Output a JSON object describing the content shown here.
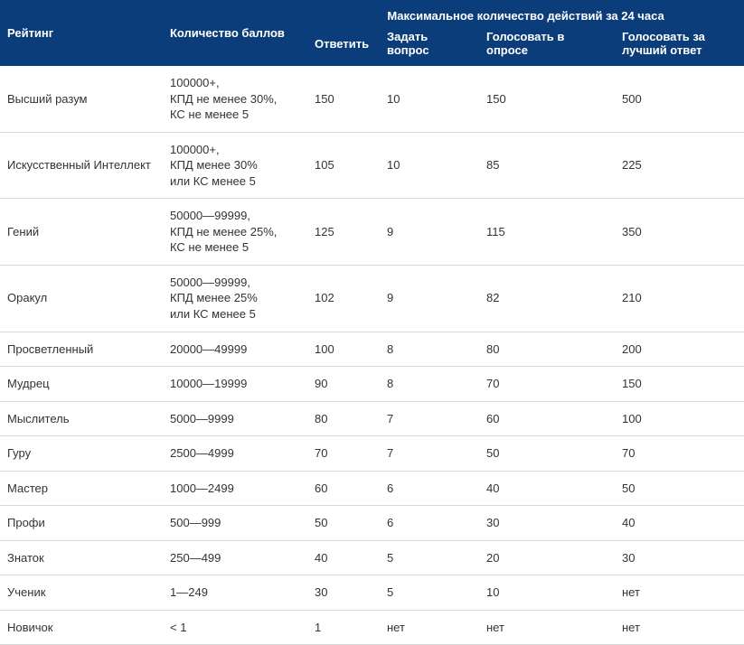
{
  "table": {
    "type": "table",
    "background_color": "#ffffff",
    "header_bg": "#0b3d7a",
    "header_text_color": "#ffffff",
    "border_color": "#d9d9d9",
    "font_family": "Arial",
    "font_size": 13,
    "columns": {
      "rating": "Рейтинг",
      "points": "Количество баллов",
      "group": "Максимальное количество действий за 24 часа",
      "answer": "Ответить",
      "ask": "Задать вопрос",
      "vote_poll": "Голосовать в опросе",
      "vote_best": "Голосовать за лучший ответ"
    },
    "col_widths": {
      "rating": 180,
      "points": 160,
      "answer": 80,
      "ask": 110,
      "vote_poll": 150,
      "vote_best": 143
    },
    "rows": [
      {
        "rating": "Высший разум",
        "points": "100000+,\nКПД не менее 30%,\nКС не менее 5",
        "answer": "150",
        "ask": "10",
        "vote_poll": "150",
        "vote_best": "500"
      },
      {
        "rating": "Искусственный Интеллект",
        "points": "100000+,\nКПД менее 30%\nили КС менее 5",
        "answer": "105",
        "ask": "10",
        "vote_poll": "85",
        "vote_best": "225"
      },
      {
        "rating": "Гений",
        "points": "50000—99999,\nКПД не менее 25%,\nКС не менее 5",
        "answer": "125",
        "ask": "9",
        "vote_poll": "115",
        "vote_best": "350"
      },
      {
        "rating": "Оракул",
        "points": "50000—99999,\nКПД менее 25%\nили КС менее 5",
        "answer": "102",
        "ask": "9",
        "vote_poll": "82",
        "vote_best": "210"
      },
      {
        "rating": "Просветленный",
        "points": "20000—49999",
        "answer": "100",
        "ask": "8",
        "vote_poll": "80",
        "vote_best": "200"
      },
      {
        "rating": "Мудрец",
        "points": "10000—19999",
        "answer": "90",
        "ask": "8",
        "vote_poll": "70",
        "vote_best": "150"
      },
      {
        "rating": "Мыслитель",
        "points": "5000—9999",
        "answer": "80",
        "ask": "7",
        "vote_poll": "60",
        "vote_best": "100"
      },
      {
        "rating": "Гуру",
        "points": "2500—4999",
        "answer": "70",
        "ask": "7",
        "vote_poll": "50",
        "vote_best": "70"
      },
      {
        "rating": "Мастер",
        "points": "1000—2499",
        "answer": "60",
        "ask": "6",
        "vote_poll": "40",
        "vote_best": "50"
      },
      {
        "rating": "Профи",
        "points": "500—999",
        "answer": "50",
        "ask": "6",
        "vote_poll": "30",
        "vote_best": "40"
      },
      {
        "rating": "Знаток",
        "points": "250—499",
        "answer": "40",
        "ask": "5",
        "vote_poll": "20",
        "vote_best": "30"
      },
      {
        "rating": "Ученик",
        "points": "1—249",
        "answer": "30",
        "ask": "5",
        "vote_poll": "10",
        "vote_best": "нет"
      },
      {
        "rating": "Новичок",
        "points": "< 1",
        "answer": "1",
        "ask": "нет",
        "vote_poll": "нет",
        "vote_best": "нет"
      }
    ]
  }
}
